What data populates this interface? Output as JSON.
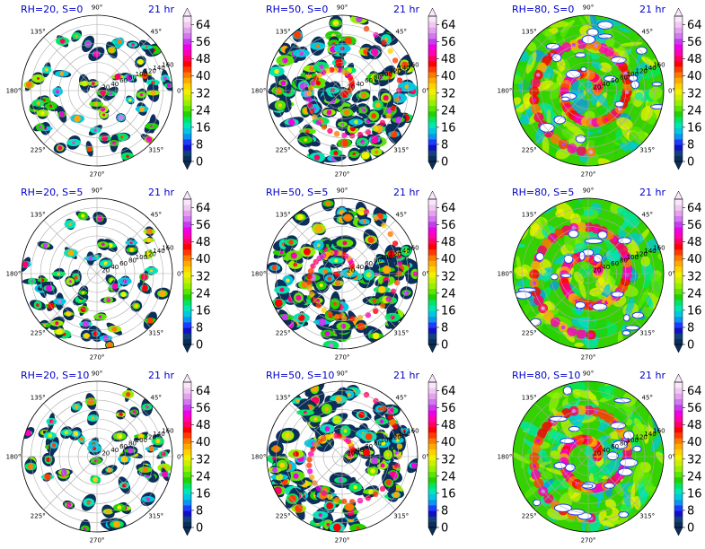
{
  "chart_data": {
    "type": "heatmap",
    "projection": "polar",
    "time_label": "21 hr",
    "angle_labels": [
      "0°",
      "45°",
      "90°",
      "135°",
      "180°",
      "225°",
      "270°",
      "315°"
    ],
    "radial_ticks": [
      "20",
      "40",
      "60",
      "80",
      "100",
      "120",
      "140",
      "160"
    ],
    "radial_range": [
      0,
      160
    ],
    "grid": true,
    "colorbar": {
      "ticks": [
        "0",
        "8",
        "16",
        "24",
        "32",
        "40",
        "48",
        "56",
        "64"
      ],
      "range": [
        0,
        68
      ],
      "extend": "both",
      "colors": [
        "#0b2e5a",
        "#12407a",
        "#1010c8",
        "#1e3cff",
        "#0a96f0",
        "#00c8e0",
        "#00e6b4",
        "#00e664",
        "#22d200",
        "#5ae600",
        "#96f000",
        "#c8f000",
        "#f0f000",
        "#ffd200",
        "#ffaa00",
        "#ff7800",
        "#ff3c00",
        "#ff0000",
        "#ff0064",
        "#ff00b4",
        "#f000e6",
        "#c83cf0",
        "#d278f0",
        "#e6a0f0",
        "#f0c8f0",
        "#f8e6fa"
      ]
    },
    "panels": [
      {
        "title": "RH=20, S=0",
        "time": "21 hr",
        "rh": 20,
        "s": 0
      },
      {
        "title": "RH=50, S=0",
        "time": "21 hr",
        "rh": 50,
        "s": 0
      },
      {
        "title": "RH=80, S=0",
        "time": "21 hr",
        "rh": 80,
        "s": 0
      },
      {
        "title": "RH=20, S=5",
        "time": "21 hr",
        "rh": 20,
        "s": 5
      },
      {
        "title": "RH=50, S=5",
        "time": "21 hr",
        "rh": 50,
        "s": 5
      },
      {
        "title": "RH=80, S=5",
        "time": "21 hr",
        "rh": 80,
        "s": 5
      },
      {
        "title": "RH=20, S=10",
        "time": "21 hr",
        "rh": 20,
        "s": 10
      },
      {
        "title": "RH=50, S=10",
        "time": "21 hr",
        "rh": 50,
        "s": 10
      },
      {
        "title": "RH=80, S=10",
        "time": "21 hr",
        "rh": 80,
        "s": 10
      }
    ]
  }
}
